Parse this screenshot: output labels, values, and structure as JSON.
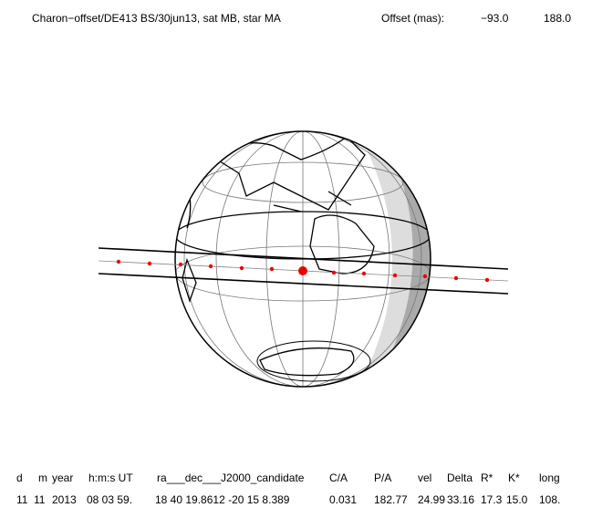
{
  "header": {
    "title": "Charon−offset/DE413 BS/30jun13, sat MB, star MA",
    "offset_label": "Offset (mas):",
    "offset_x": "−93.0",
    "offset_y": "188.0"
  },
  "table": {
    "columns": [
      "d",
      "m",
      "year",
      "h:m:s UT",
      "ra___dec___J2000_candidate",
      "C/A",
      "P/A",
      "vel",
      "Delta",
      "R*",
      "K*",
      "long"
    ],
    "row": [
      "11",
      "11",
      "2013",
      "08 03 59.",
      "18 40 19.8612 -20 15  8.389",
      "0.031",
      "182.77",
      "24.99",
      "33.16",
      "17.3",
      "15.0",
      "108."
    ]
  }
}
